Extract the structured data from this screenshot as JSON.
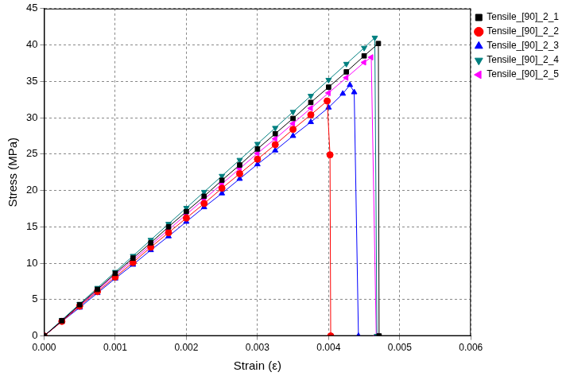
{
  "chart_data": {
    "type": "line",
    "x_label": "Strain (ε)",
    "y_label": "Stress (MPa)",
    "xlim": [
      0,
      0.006
    ],
    "xticks": [
      {
        "value": 0,
        "label": "0.000"
      },
      {
        "value": 0.001,
        "label": "0.001"
      },
      {
        "value": 0.002,
        "label": "0.002"
      },
      {
        "value": 0.003,
        "label": "0.003"
      },
      {
        "value": 0.004,
        "label": "0.004"
      },
      {
        "value": 0.005,
        "label": "0.005"
      },
      {
        "value": 0.006,
        "label": "0.006"
      }
    ],
    "ylim": [
      0,
      45
    ],
    "yticks": [
      0,
      5,
      10,
      15,
      20,
      25,
      30,
      35,
      40,
      45
    ],
    "grid": true,
    "legend": "upper right",
    "series": [
      {
        "name": "Tensile_[90]_2_1",
        "color": "#000000",
        "marker": "square",
        "line_style": "solid",
        "x": [
          0,
          0.00025,
          0.0005,
          0.00075,
          0.001,
          0.00125,
          0.0015,
          0.00175,
          0.002,
          0.00225,
          0.0025,
          0.00275,
          0.003,
          0.00325,
          0.0035,
          0.00375,
          0.004,
          0.00425,
          0.0045,
          0.0047,
          0.00471
        ],
        "values": [
          0,
          2.1,
          4.3,
          6.4,
          8.6,
          10.7,
          12.8,
          15.0,
          17.1,
          19.2,
          21.4,
          23.5,
          25.7,
          27.8,
          29.9,
          32.1,
          34.2,
          36.3,
          38.5,
          40.2,
          0
        ]
      },
      {
        "name": "Tensile_[90]_2_2",
        "color": "#ff0000",
        "marker": "circle",
        "line_style": "solid",
        "x": [
          0,
          0.00025,
          0.0005,
          0.00075,
          0.001,
          0.00125,
          0.0015,
          0.00175,
          0.002,
          0.00225,
          0.0025,
          0.00275,
          0.003,
          0.00325,
          0.0035,
          0.00375,
          0.00398,
          0.00402,
          0.00403
        ],
        "values": [
          0,
          2.0,
          4.1,
          6.1,
          8.1,
          10.1,
          12.2,
          14.2,
          16.2,
          18.2,
          20.3,
          22.3,
          24.3,
          26.3,
          28.4,
          30.4,
          32.3,
          24.9,
          0
        ]
      },
      {
        "name": "Tensile_[90]_2_3",
        "color": "#0000ff",
        "marker": "triangle",
        "line_style": "solid",
        "x": [
          0,
          0.00025,
          0.0005,
          0.00075,
          0.001,
          0.00125,
          0.0015,
          0.00175,
          0.002,
          0.00225,
          0.0025,
          0.00275,
          0.003,
          0.00325,
          0.0035,
          0.00375,
          0.004,
          0.0042,
          0.0043,
          0.00436,
          0.00442
        ],
        "values": [
          0,
          2.0,
          3.9,
          5.9,
          7.9,
          9.8,
          11.8,
          13.7,
          15.7,
          17.7,
          19.6,
          21.6,
          23.6,
          25.5,
          27.5,
          29.4,
          31.4,
          33.3,
          34.5,
          33.5,
          0
        ]
      },
      {
        "name": "Tensile_[90]_2_4",
        "color": "#008080",
        "marker": "triangle-down",
        "line_style": "solid",
        "x": [
          0,
          0.00025,
          0.0005,
          0.00075,
          0.001,
          0.00125,
          0.0015,
          0.00175,
          0.002,
          0.00225,
          0.0025,
          0.00275,
          0.003,
          0.00325,
          0.0035,
          0.00375,
          0.004,
          0.00425,
          0.0045,
          0.00465,
          0.00468
        ],
        "values": [
          0,
          2.2,
          4.4,
          6.6,
          8.8,
          11.0,
          13.2,
          15.4,
          17.6,
          19.8,
          22.0,
          24.2,
          26.4,
          28.6,
          30.8,
          33.0,
          35.2,
          37.4,
          39.6,
          41.0,
          0
        ]
      },
      {
        "name": "Tensile_[90]_2_5",
        "color": "#ff00ff",
        "marker": "triangle-left",
        "line_style": "solid",
        "x": [
          0,
          0.00025,
          0.0005,
          0.00075,
          0.001,
          0.00125,
          0.0015,
          0.00175,
          0.002,
          0.00225,
          0.0025,
          0.00275,
          0.003,
          0.00325,
          0.0035,
          0.00375,
          0.004,
          0.00425,
          0.0045,
          0.0046,
          0.00467
        ],
        "values": [
          0,
          2.1,
          4.2,
          6.3,
          8.4,
          10.4,
          12.5,
          14.6,
          16.7,
          18.8,
          20.9,
          23.0,
          25.1,
          27.1,
          29.2,
          31.3,
          33.4,
          35.5,
          37.6,
          38.3,
          0
        ]
      }
    ]
  }
}
